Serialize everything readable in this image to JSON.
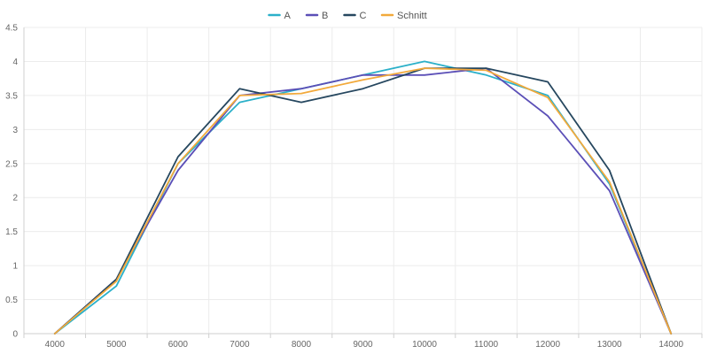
{
  "chart_data": {
    "type": "line",
    "x": [
      4000,
      5000,
      6000,
      7000,
      8000,
      9000,
      10000,
      11000,
      12000,
      13000,
      14000
    ],
    "series": [
      {
        "name": "A",
        "color": "#2bb0c9",
        "values": [
          0,
          0.7,
          2.5,
          3.4,
          3.6,
          3.8,
          4.0,
          3.8,
          3.5,
          2.2,
          0
        ]
      },
      {
        "name": "B",
        "color": "#5b4fb7",
        "values": [
          0,
          0.8,
          2.4,
          3.5,
          3.6,
          3.8,
          3.8,
          3.9,
          3.2,
          2.1,
          0
        ]
      },
      {
        "name": "C",
        "color": "#26475f",
        "values": [
          0,
          0.8,
          2.6,
          3.6,
          3.4,
          3.6,
          3.9,
          3.9,
          3.7,
          2.4,
          0
        ]
      },
      {
        "name": "Schnitt",
        "color": "#f2a93b",
        "values": [
          0,
          0.77,
          2.5,
          3.5,
          3.53,
          3.73,
          3.9,
          3.87,
          3.47,
          2.23,
          0
        ]
      }
    ],
    "x_ticks": [
      "4000",
      "5000",
      "6000",
      "7000",
      "8000",
      "9000",
      "10000",
      "11000",
      "12000",
      "13000",
      "14000"
    ],
    "y_ticks": [
      "0",
      "0.5",
      "1",
      "1.5",
      "2",
      "2.5",
      "3",
      "3.5",
      "4",
      "4.5"
    ],
    "ylim": [
      0,
      4.5
    ],
    "xlim": [
      4000,
      14000
    ],
    "grid": true,
    "legend_position": "top-center",
    "title": "",
    "xlabel": "",
    "ylabel": ""
  }
}
